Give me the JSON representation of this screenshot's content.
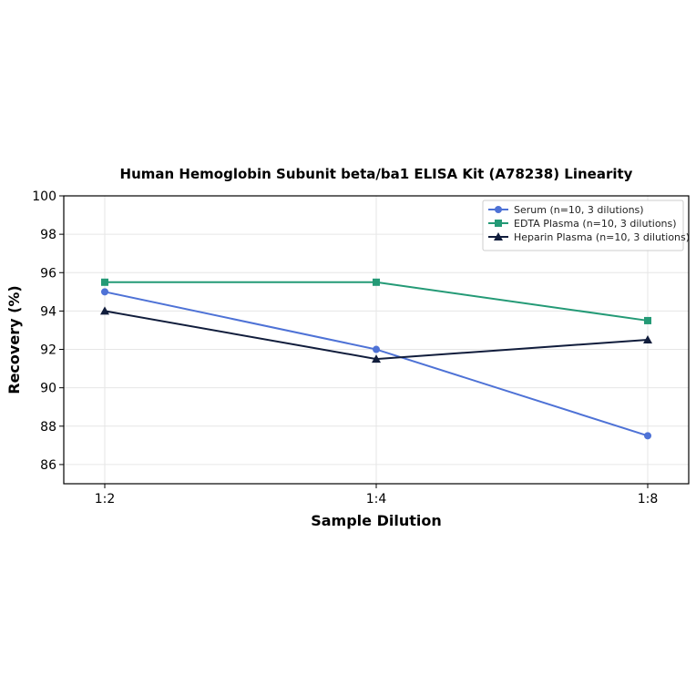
{
  "chart_data": {
    "type": "line",
    "title": "Human Hemoglobin Subunit beta/ba1 ELISA Kit (A78238) Linearity",
    "xlabel": "Sample Dilution",
    "ylabel": "Recovery (%)",
    "categories": [
      "1:2",
      "1:4",
      "1:8"
    ],
    "ylim": [
      85,
      100
    ],
    "yticks": [
      86,
      88,
      90,
      92,
      94,
      96,
      98,
      100
    ],
    "grid": true,
    "legend_position": "top-right",
    "series": [
      {
        "name": "Serum (n=10, 3 dilutions)",
        "values": [
          95.0,
          92.0,
          87.5
        ],
        "color": "#4e72d6",
        "marker": "circle"
      },
      {
        "name": "EDTA Plasma (n=10, 3 dilutions)",
        "values": [
          95.5,
          95.5,
          93.5
        ],
        "color": "#249a76",
        "marker": "square"
      },
      {
        "name": "Heparin Plasma (n=10, 3 dilutions)",
        "values": [
          94.0,
          91.5,
          92.5
        ],
        "color": "#111d3c",
        "marker": "triangle"
      }
    ]
  }
}
